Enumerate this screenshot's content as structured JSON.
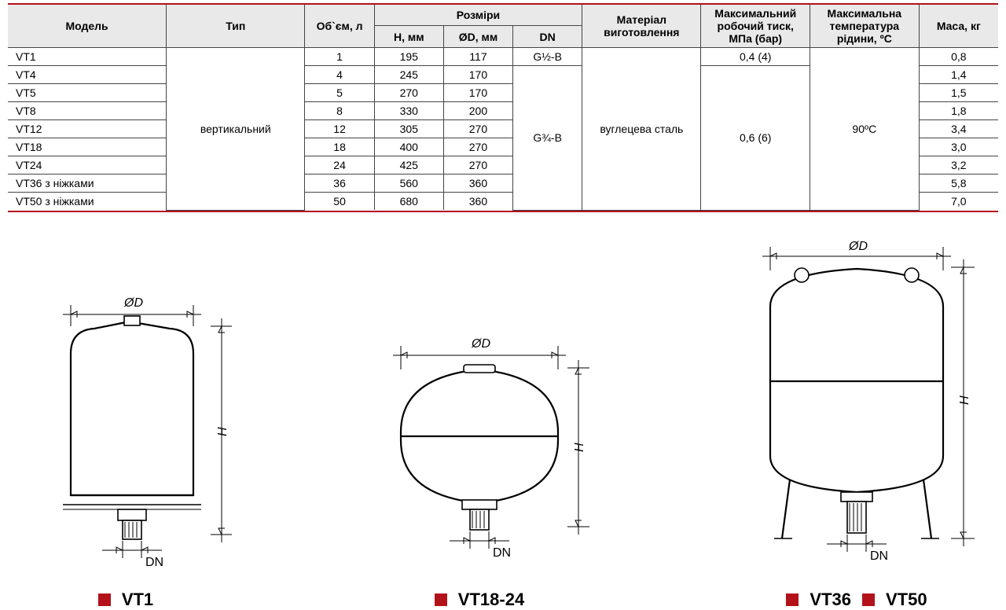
{
  "colors": {
    "accent": "#b3121a",
    "header_bg": "#e9e9e9",
    "border": "#444444",
    "background": "#ffffff",
    "text": "#000000"
  },
  "table": {
    "col_widths_pct": [
      16,
      14,
      7,
      7,
      7,
      7,
      12,
      11,
      11,
      8
    ],
    "header_row1": [
      "Модель",
      "Тип",
      "Об`єм, л",
      "Розміри",
      "Матеріал виготовлення",
      "Максимальний робочий тиск, МПа (бар)",
      "Максимальна температура рідини, ºС",
      "Маса, кг"
    ],
    "header_row2": [
      "Н, мм",
      "ØD, мм",
      "DN"
    ],
    "type_value": "вертикальний",
    "material_value": "вуглецева сталь",
    "temp_value": "90ºС",
    "pressure_top": "0,4 (4)",
    "pressure_rest": "0,6 (6)",
    "dn_top": "G½-B",
    "dn_rest": "G¾-B",
    "rows": [
      {
        "model": "VT1",
        "vol": "1",
        "h": "195",
        "d": "117",
        "dn": "top",
        "press": "top",
        "mass": "0,8"
      },
      {
        "model": "VT4",
        "vol": "4",
        "h": "245",
        "d": "170",
        "dn": "rest",
        "press": "rest",
        "mass": "1,4"
      },
      {
        "model": "VT5",
        "vol": "5",
        "h": "270",
        "d": "170",
        "dn": "rest",
        "press": "rest",
        "mass": "1,5"
      },
      {
        "model": "VT8",
        "vol": "8",
        "h": "330",
        "d": "200",
        "dn": "rest",
        "press": "rest",
        "mass": "1,8"
      },
      {
        "model": "VT12",
        "vol": "12",
        "h": "305",
        "d": "270",
        "dn": "rest",
        "press": "rest",
        "mass": "3,4"
      },
      {
        "model": "VT18",
        "vol": "18",
        "h": "400",
        "d": "270",
        "dn": "rest",
        "press": "rest",
        "mass": "3,0"
      },
      {
        "model": "VT24",
        "vol": "24",
        "h": "425",
        "d": "270",
        "dn": "rest",
        "press": "rest",
        "mass": "3,2"
      },
      {
        "model": "VT36 з ніжками",
        "vol": "36",
        "h": "560",
        "d": "360",
        "dn": "rest",
        "press": "rest",
        "mass": "5,8"
      },
      {
        "model": "VT50 з ніжками",
        "vol": "50",
        "h": "680",
        "d": "360",
        "dn": "rest",
        "press": "rest",
        "mass": "7,0"
      }
    ]
  },
  "diagrams": {
    "dim_d": "ØD",
    "dim_h": "H",
    "dim_dn": "DN",
    "labels": {
      "a": "VT1",
      "b": "VT18-24",
      "c1": "VT36",
      "c2": "VT50"
    }
  }
}
